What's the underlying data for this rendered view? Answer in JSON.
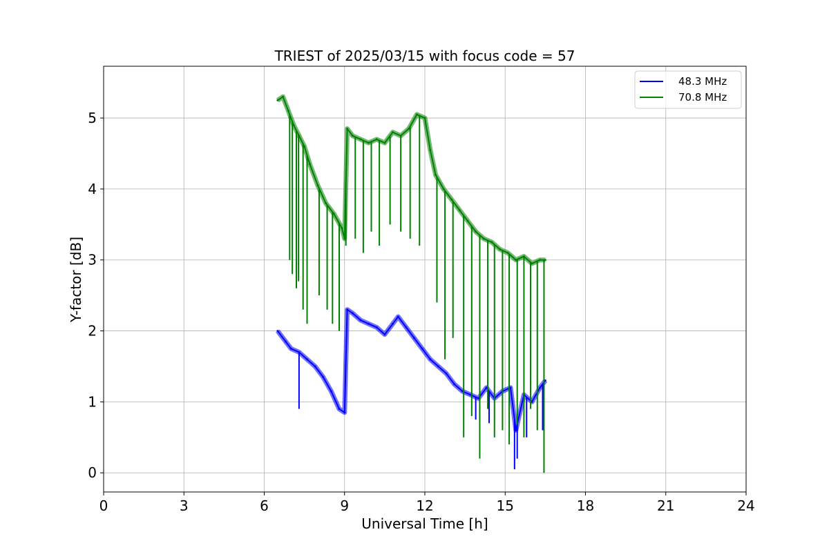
{
  "chart_data": {
    "type": "line",
    "title": "TRIEST of 2025/03/15 with focus code = 57",
    "xlabel": "Universal Time [h]",
    "ylabel": "Y-factor [dB]",
    "xlim": [
      0,
      24
    ],
    "ylim": [
      -0.27,
      5.73
    ],
    "xticks": [
      0,
      3,
      6,
      9,
      12,
      15,
      18,
      21,
      24
    ],
    "yticks": [
      0,
      1,
      2,
      3,
      4,
      5
    ],
    "grid": true,
    "legend_position": "top-right",
    "series": [
      {
        "name": "48.3 MHz",
        "color": "#0000ff",
        "x": [
          6.5,
          6.8,
          7.0,
          7.3,
          7.6,
          7.9,
          8.2,
          8.5,
          8.8,
          9.0,
          9.1,
          9.3,
          9.6,
          9.9,
          10.2,
          10.5,
          10.8,
          11.0,
          11.3,
          11.6,
          11.9,
          12.2,
          12.5,
          12.8,
          13.1,
          13.4,
          13.7,
          14.0,
          14.3,
          14.6,
          14.9,
          15.2,
          15.4,
          15.7,
          16.0,
          16.3,
          16.5
        ],
        "y": [
          2.0,
          1.85,
          1.75,
          1.7,
          1.6,
          1.5,
          1.35,
          1.15,
          0.9,
          0.85,
          2.3,
          2.25,
          2.15,
          2.1,
          2.05,
          1.95,
          2.1,
          2.2,
          2.05,
          1.9,
          1.75,
          1.6,
          1.5,
          1.4,
          1.25,
          1.15,
          1.1,
          1.05,
          1.2,
          1.05,
          1.15,
          1.2,
          0.6,
          1.1,
          1.0,
          1.2,
          1.3
        ]
      },
      {
        "name": "70.8 MHz",
        "color": "#008000",
        "x": [
          6.5,
          6.7,
          6.9,
          7.1,
          7.3,
          7.5,
          7.7,
          8.0,
          8.3,
          8.6,
          8.9,
          9.0,
          9.1,
          9.3,
          9.6,
          9.9,
          10.2,
          10.5,
          10.8,
          11.1,
          11.4,
          11.7,
          12.0,
          12.2,
          12.4,
          12.7,
          13.0,
          13.3,
          13.6,
          13.9,
          14.2,
          14.5,
          14.8,
          15.1,
          15.4,
          15.7,
          16.0,
          16.3,
          16.5
        ],
        "y": [
          5.25,
          5.3,
          5.1,
          4.9,
          4.75,
          4.6,
          4.35,
          4.05,
          3.8,
          3.65,
          3.45,
          3.3,
          4.85,
          4.75,
          4.7,
          4.65,
          4.7,
          4.65,
          4.8,
          4.75,
          4.85,
          5.05,
          5.0,
          4.55,
          4.2,
          4.0,
          3.85,
          3.7,
          3.55,
          3.4,
          3.3,
          3.25,
          3.15,
          3.1,
          3.0,
          3.05,
          2.95,
          3.0,
          3.0
        ]
      }
    ],
    "dips": [
      {
        "series": 1,
        "x": [
          6.95,
          7.05,
          7.2,
          7.28,
          7.45,
          7.6,
          8.05,
          8.35,
          8.55,
          8.8,
          9.05,
          9.4,
          9.7,
          10.0,
          10.3,
          10.7,
          11.1,
          11.45,
          11.8,
          12.45,
          12.75,
          13.05,
          13.45,
          13.75,
          14.05,
          14.35,
          14.6,
          14.9,
          15.15,
          15.45,
          15.7,
          15.95,
          16.2,
          16.45
        ],
        "y": [
          3.0,
          2.8,
          2.6,
          2.7,
          2.3,
          2.1,
          2.5,
          2.3,
          2.1,
          2.0,
          3.2,
          3.3,
          3.1,
          3.4,
          3.2,
          3.5,
          3.4,
          3.3,
          3.2,
          2.4,
          1.6,
          1.9,
          0.5,
          0.8,
          0.2,
          0.9,
          0.5,
          0.6,
          0.4,
          0.6,
          0.5,
          0.9,
          0.6,
          0.0
        ]
      },
      {
        "series": 0,
        "x": [
          7.3,
          13.9,
          14.4,
          15.35,
          15.45,
          15.8,
          16.4
        ],
        "y": [
          0.9,
          0.75,
          0.7,
          0.05,
          0.2,
          0.5,
          0.6
        ]
      }
    ]
  }
}
